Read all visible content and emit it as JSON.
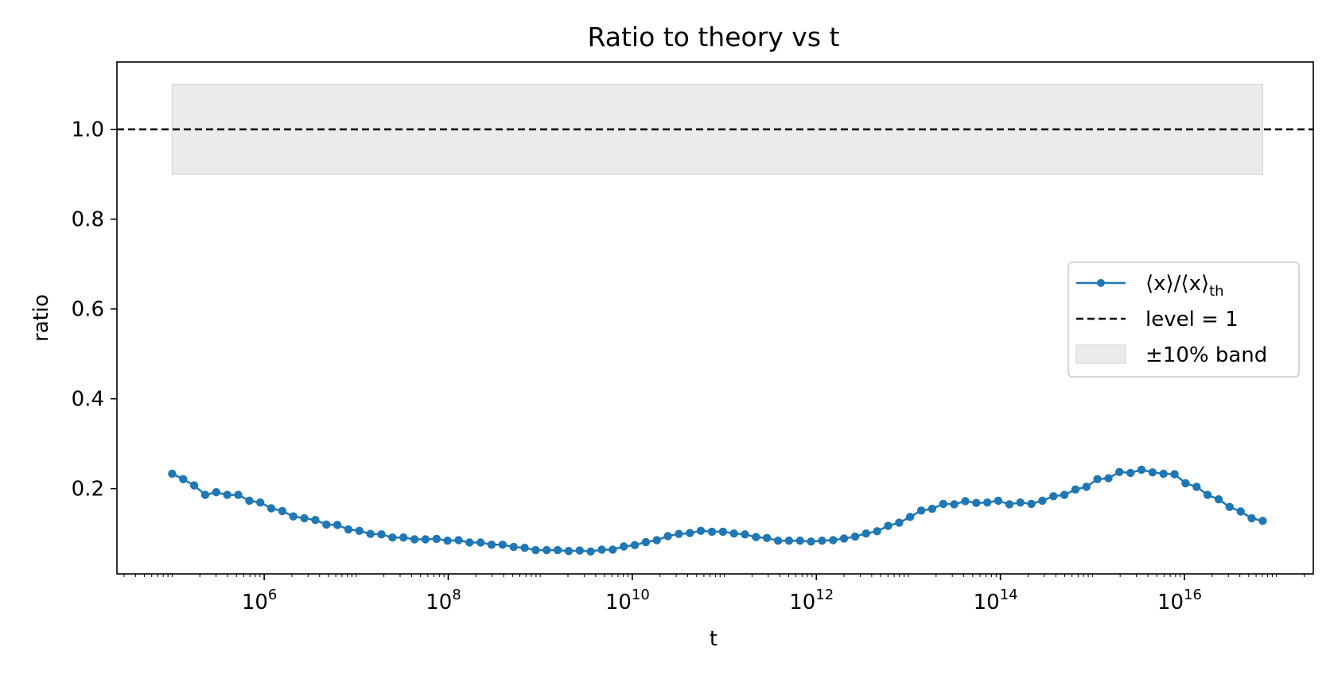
{
  "chart_data": {
    "type": "line",
    "title": "Ratio to theory vs t",
    "xlabel": "t",
    "ylabel": "ratio",
    "xscale": "log",
    "xlim_log10": [
      4.4,
      17.4
    ],
    "ylim": [
      0.01,
      1.15
    ],
    "x_ticks": [
      {
        "base": "10",
        "exp": "6",
        "value": 6
      },
      {
        "base": "10",
        "exp": "8",
        "value": 8
      },
      {
        "base": "10",
        "exp": "10",
        "value": 10
      },
      {
        "base": "10",
        "exp": "12",
        "value": 12
      },
      {
        "base": "10",
        "exp": "14",
        "value": 14
      },
      {
        "base": "10",
        "exp": "16",
        "value": 16
      }
    ],
    "y_ticks": [
      {
        "label": "0.2",
        "value": 0.2
      },
      {
        "label": "0.4",
        "value": 0.4
      },
      {
        "label": "0.6",
        "value": 0.6
      },
      {
        "label": "0.8",
        "value": 0.8
      },
      {
        "label": "1.0",
        "value": 1.0
      }
    ],
    "series": [
      {
        "name": "⟨x⟩/⟨x⟩th",
        "legend_main": "⟨x⟩/⟨x⟩",
        "legend_sub": "th",
        "color": "#1f77b4",
        "x_start_log10": 5.0,
        "x_end_log10": 16.85,
        "values": [
          0.233,
          0.221,
          0.207,
          0.186,
          0.192,
          0.186,
          0.186,
          0.173,
          0.169,
          0.156,
          0.15,
          0.138,
          0.134,
          0.13,
          0.12,
          0.119,
          0.109,
          0.106,
          0.099,
          0.098,
          0.091,
          0.091,
          0.087,
          0.087,
          0.088,
          0.084,
          0.085,
          0.08,
          0.08,
          0.075,
          0.075,
          0.07,
          0.068,
          0.063,
          0.063,
          0.063,
          0.061,
          0.062,
          0.06,
          0.064,
          0.064,
          0.071,
          0.074,
          0.081,
          0.085,
          0.094,
          0.099,
          0.101,
          0.106,
          0.104,
          0.104,
          0.1,
          0.098,
          0.092,
          0.09,
          0.084,
          0.084,
          0.084,
          0.082,
          0.084,
          0.085,
          0.089,
          0.093,
          0.1,
          0.105,
          0.117,
          0.124,
          0.137,
          0.151,
          0.155,
          0.166,
          0.165,
          0.172,
          0.168,
          0.169,
          0.173,
          0.165,
          0.169,
          0.166,
          0.173,
          0.183,
          0.186,
          0.198,
          0.204,
          0.221,
          0.223,
          0.237,
          0.235,
          0.242,
          0.236,
          0.233,
          0.232,
          0.212,
          0.204,
          0.186,
          0.176,
          0.159,
          0.149,
          0.134,
          0.128
        ]
      }
    ],
    "reference_line": {
      "name": "level = 1",
      "value": 1.0,
      "style": "dashed",
      "color": "#000000"
    },
    "band": {
      "name": "±10% band",
      "y_low": 0.9,
      "y_high": 1.1,
      "x_start_log10": 5.0,
      "x_end_log10": 16.85,
      "color": "#ebebeb"
    },
    "legend_position": "center-right"
  }
}
